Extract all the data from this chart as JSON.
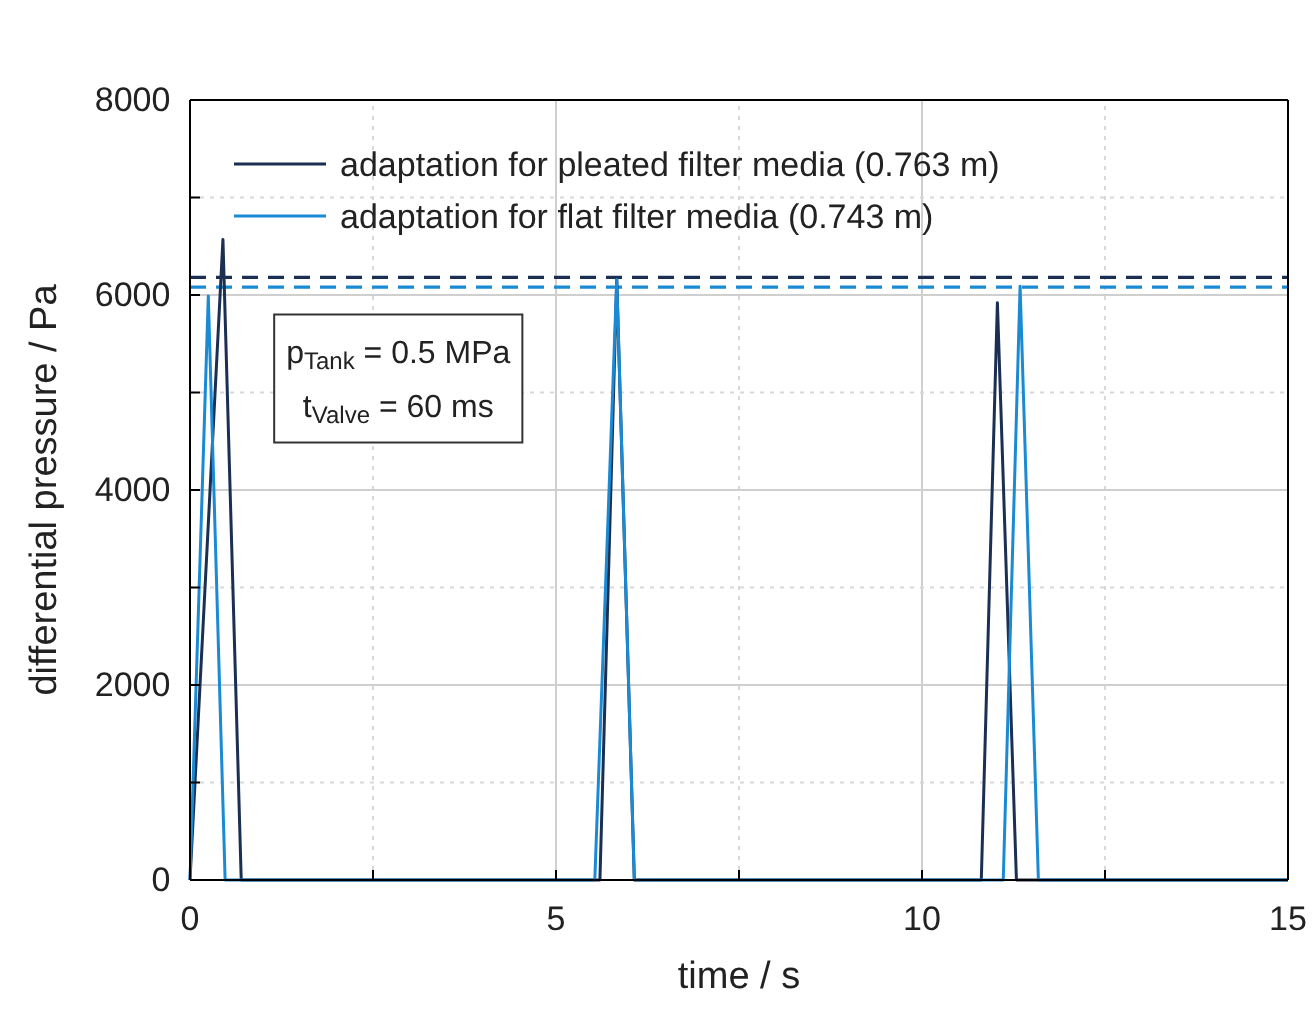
{
  "chart_data": {
    "type": "line",
    "xlabel": "time / s",
    "ylabel": "differential pressure / Pa",
    "xlim": [
      0,
      15
    ],
    "ylim": [
      0,
      8000
    ],
    "xticks": [
      0,
      {
        "value": 2.5,
        "label": null
      },
      5,
      {
        "value": 7.5,
        "label": null
      },
      10,
      {
        "value": 12.5,
        "label": null
      },
      15
    ],
    "yticks": [
      0,
      {
        "value": 1000,
        "label": null
      },
      2000,
      {
        "value": 3000,
        "label": null
      },
      4000,
      {
        "value": 5000,
        "label": null
      },
      6000,
      {
        "value": 7000,
        "label": null
      },
      8000
    ],
    "grid": true,
    "legend": "top left",
    "line_style": "solid",
    "marker": "none",
    "series": [
      {
        "name": "adaptation for pleated filter media (0.763 m)",
        "color": "#1b2f52",
        "x": [
          0,
          0.45,
          0.7,
          5.6,
          5.83,
          6.07,
          10.81,
          11.03,
          11.29,
          15
        ],
        "values": [
          0,
          6570,
          0,
          0,
          6160,
          0,
          0,
          5920,
          0,
          0
        ]
      },
      {
        "name": "adaptation for flat filter media (0.743 m)",
        "color": "#1a8ad4",
        "x": [
          0,
          0.25,
          0.48,
          5.53,
          5.83,
          6.07,
          11.11,
          11.34,
          11.59,
          15
        ],
        "values": [
          0,
          5990,
          0,
          0,
          6160,
          0,
          0,
          6090,
          0,
          0
        ]
      }
    ],
    "ref_lines": [
      {
        "axis": "y",
        "value": 6180,
        "color": "#1b2f52",
        "line_style": "dashed"
      },
      {
        "axis": "y",
        "value": 6080,
        "color": "#1a8ad4",
        "line_style": "dashed"
      }
    ],
    "annotations": [
      "p$_{Tank}$ = 0.5 MPa",
      "t$_{Valve}$ = 60 ms"
    ]
  }
}
